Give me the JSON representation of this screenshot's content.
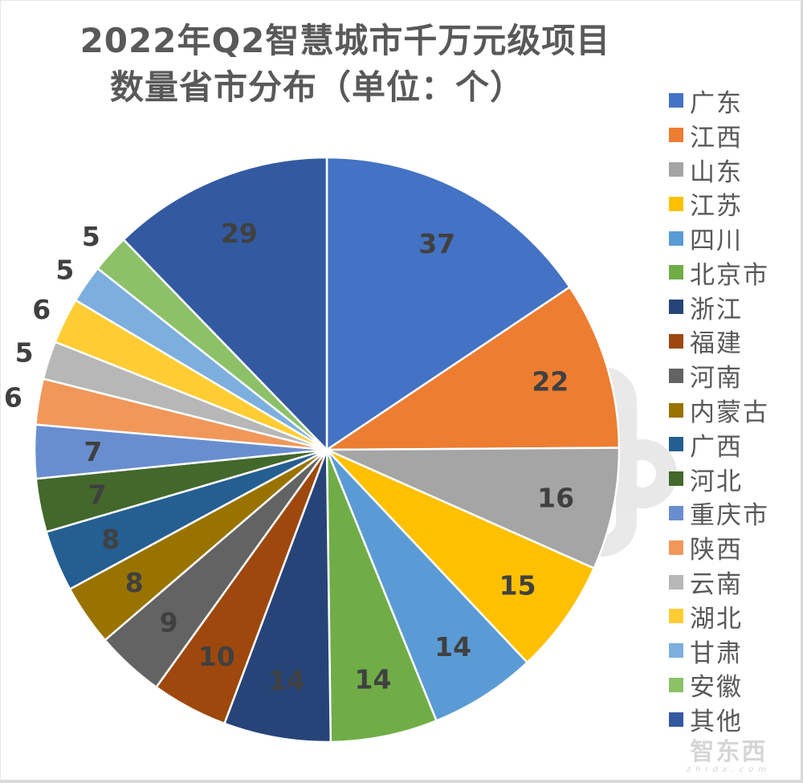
{
  "title": {
    "line1": "2022年Q2智慧城市千万元级项目",
    "line2": "数量省市分布（单位：个）"
  },
  "watermark": {
    "cn": "智东西",
    "en": "zhidx.com"
  },
  "chart_data": {
    "type": "pie",
    "title": "2022年Q2智慧城市千万元级项目数量省市分布（单位：个）",
    "unit": "个",
    "start_angle_deg": 0,
    "direction": "clockwise",
    "legend_position": "right",
    "categories": [
      "广东",
      "江西",
      "山东",
      "江苏",
      "四川",
      "北京市",
      "浙江",
      "福建",
      "河南",
      "内蒙古",
      "广西",
      "河北",
      "重庆市",
      "陕西",
      "云南",
      "湖北",
      "甘肃",
      "安徽",
      "其他"
    ],
    "values": [
      37,
      22,
      16,
      15,
      14,
      14,
      14,
      10,
      9,
      8,
      8,
      7,
      7,
      6,
      5,
      6,
      5,
      5,
      29
    ],
    "colors": [
      "#4472C4",
      "#ED7D31",
      "#A5A5A5",
      "#FFC000",
      "#5B9BD5",
      "#70AD47",
      "#264478",
      "#9E480E",
      "#636363",
      "#997300",
      "#255E91",
      "#43682B",
      "#698ED0",
      "#F1975A",
      "#B7B7B7",
      "#FFCD33",
      "#7CAFDD",
      "#8CC168",
      "#335AA1"
    ],
    "data_labels": [
      "37",
      "22",
      "16",
      "15",
      "14",
      "14",
      "14",
      "10",
      "9",
      "8",
      "8",
      "7",
      "7",
      "6",
      "5",
      "6",
      "5",
      "5",
      "29"
    ],
    "outside_labels": [
      false,
      false,
      false,
      false,
      false,
      false,
      false,
      false,
      false,
      false,
      false,
      false,
      false,
      true,
      true,
      true,
      true,
      true,
      false
    ]
  }
}
